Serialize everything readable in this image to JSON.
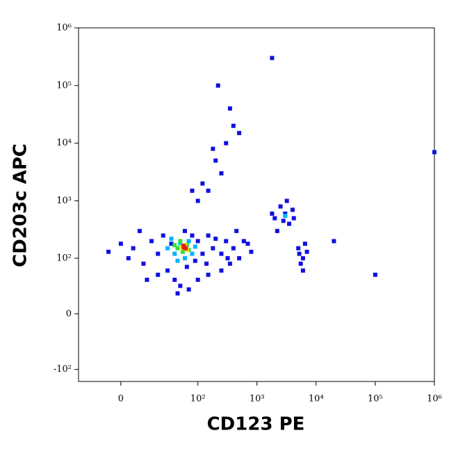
{
  "chart_data": {
    "type": "scatter",
    "xlabel": "CD123 PE",
    "ylabel": "CD203c APC",
    "xscale": "asinh",
    "yscale": "asinh",
    "xlim": [
      -25,
      1000000
    ],
    "ylim": [
      -163,
      1000000
    ],
    "xticks": [
      0,
      {
        "value": 100,
        "label": "10²"
      },
      {
        "value": 1000,
        "label": "10³"
      },
      {
        "value": 10000,
        "label": "10⁴"
      },
      {
        "value": 100000,
        "label": "10⁵"
      },
      {
        "value": 1000000,
        "label": "10⁶"
      }
    ],
    "yticks": [
      {
        "value": -100,
        "label": "-10²"
      },
      0,
      {
        "value": 100,
        "label": "10²"
      },
      {
        "value": 1000,
        "label": "10³"
      },
      {
        "value": 10000,
        "label": "10⁴"
      },
      {
        "value": 100000,
        "label": "10⁵"
      },
      {
        "value": 1000000,
        "label": "10⁶"
      }
    ],
    "series": [
      {
        "color": "#1010e0",
        "x": [
          5,
          10,
          15,
          20,
          8,
          30,
          40,
          50,
          25,
          35,
          60,
          80,
          100,
          150,
          200,
          300,
          400,
          500,
          350,
          250,
          150,
          100,
          70,
          45,
          600,
          450,
          120,
          180,
          250,
          320,
          20,
          12,
          3,
          0,
          -5,
          65,
          90,
          140,
          700,
          800,
          2000,
          2500,
          3000,
          3500,
          4000,
          2200,
          3200,
          2800,
          1800,
          4200,
          5000,
          6000,
          7000,
          5500,
          6500,
          6000,
          5200,
          120,
          200,
          300,
          150,
          250,
          400,
          180,
          100,
          350,
          220,
          80,
          500,
          1800,
          20000,
          100000,
          1000000
        ],
        "y": [
          150,
          80,
          200,
          120,
          300,
          60,
          40,
          30,
          250,
          180,
          300,
          250,
          200,
          250,
          220,
          200,
          150,
          100,
          80,
          60,
          50,
          40,
          25,
          20,
          200,
          300,
          120,
          150,
          120,
          100,
          50,
          40,
          100,
          180,
          130,
          70,
          90,
          80,
          180,
          130,
          500,
          800,
          600,
          400,
          700,
          300,
          1000,
          450,
          600,
          500,
          150,
          100,
          130,
          80,
          180,
          60,
          120,
          2000,
          5000,
          10000,
          1500,
          3000,
          20000,
          8000,
          1000,
          40000,
          100000,
          1500,
          15000,
          300000,
          200,
          50,
          7000
        ]
      },
      {
        "color": "#00b4ff",
        "x": [
          30,
          40,
          50,
          70,
          80,
          45,
          35,
          60,
          90,
          3000
        ],
        "y": [
          150,
          120,
          180,
          200,
          120,
          90,
          220,
          100,
          160,
          550
        ]
      },
      {
        "color": "#30e040",
        "x": [
          45,
          55,
          65,
          50,
          70,
          40
        ],
        "y": [
          150,
          130,
          170,
          200,
          140,
          170
        ]
      },
      {
        "color": "#f0e020",
        "x": [
          55,
          60,
          65,
          52
        ],
        "y": [
          150,
          170,
          140,
          160
        ]
      },
      {
        "color": "#e02010",
        "x": [
          58,
          62,
          57
        ],
        "y": [
          155,
          150,
          165
        ]
      }
    ]
  }
}
